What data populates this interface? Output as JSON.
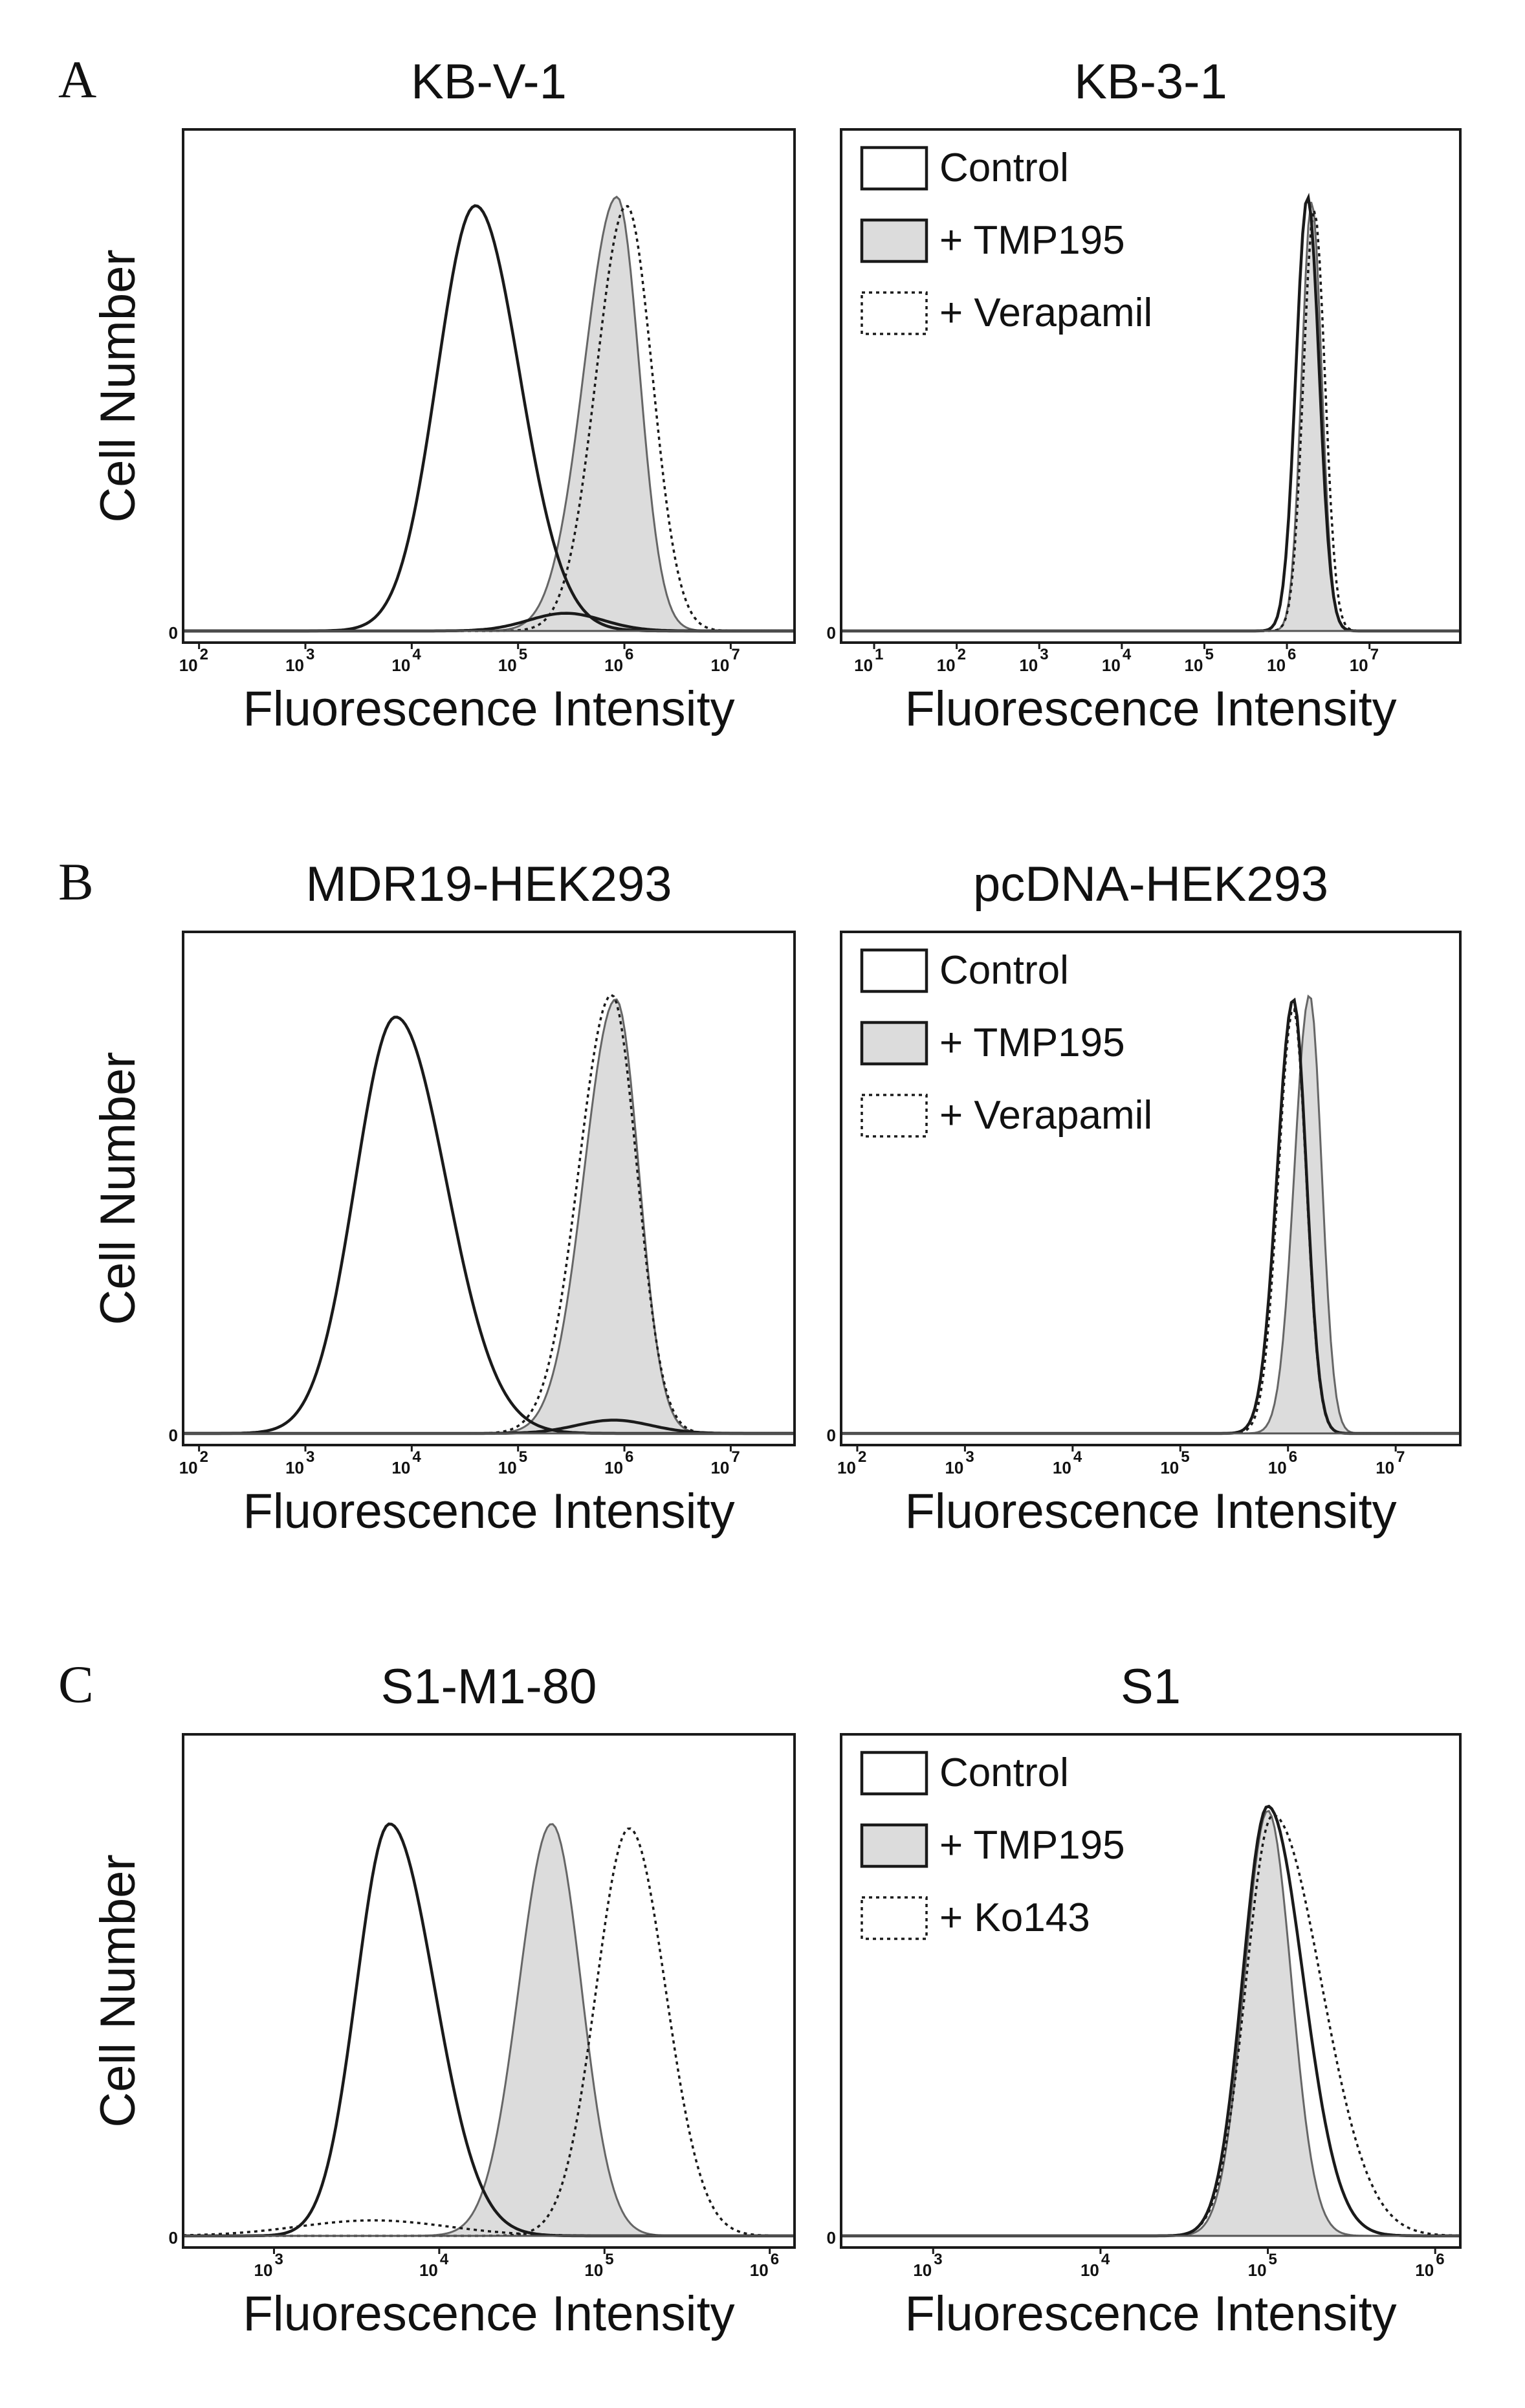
{
  "figure": {
    "colors": {
      "control": "#1a1a1a",
      "tmp195_fill": "#dcdcdc",
      "tmp195_line": "#666666",
      "dotted": "#1a1a1a",
      "axis": "#1a1a1a"
    }
  },
  "chart_data": [
    {
      "id": "A-left",
      "panel_letter": "A",
      "type": "area",
      "title": "KB-V-1",
      "xlabel": "Fluorescence Intensity",
      "ylabel": "Cell Number",
      "zero_label": "0",
      "xscale": "log",
      "tick_base": "10",
      "tick_exponents": [
        "2",
        "3",
        "4",
        "5",
        "6",
        "7"
      ],
      "x_ticks": [
        2,
        3,
        4,
        5,
        6,
        7
      ],
      "xlim": [
        1.85,
        7.6
      ],
      "ylim": [
        0,
        1.1
      ],
      "legend": null,
      "series": [
        {
          "name": "Control",
          "style": "solid",
          "peak_log10": 4.6,
          "spread": 0.36,
          "height": 0.96,
          "rise": 1.0,
          "fall": 1.15
        },
        {
          "name": "+ TMP195",
          "style": "filled",
          "peak_log10": 5.93,
          "spread": 0.28,
          "height": 0.98,
          "rise": 1.1,
          "fall": 0.75
        },
        {
          "name": "+ TMP195 (low shoulder)",
          "style": "solid",
          "peak_log10": 5.45,
          "spread": 0.35,
          "height": 0.04,
          "rise": 1.0,
          "fall": 1.0
        },
        {
          "name": "+ Verapamil",
          "style": "dotted",
          "peak_log10": 6.02,
          "spread": 0.27,
          "height": 0.96,
          "rise": 1.05,
          "fall": 0.9
        }
      ]
    },
    {
      "id": "A-right",
      "panel_letter": "",
      "type": "area",
      "title": "KB-3-1",
      "xlabel": "Fluorescence Intensity",
      "ylabel": "",
      "zero_label": "0",
      "xscale": "log",
      "tick_base": "10",
      "tick_exponents": [
        "1",
        "2",
        "3",
        "4",
        "5",
        "6",
        "7"
      ],
      "x_ticks": [
        1,
        2,
        3,
        4,
        5,
        6,
        7
      ],
      "xlim": [
        0.6,
        8.1
      ],
      "ylim": [
        0,
        1.1
      ],
      "legend": [
        "Control",
        "+ TMP195",
        "+ Verapamil"
      ],
      "series": [
        {
          "name": "Control",
          "style": "solid",
          "peak_log10": 6.25,
          "spread": 0.14,
          "height": 0.98,
          "rise": 1.0,
          "fall": 1.0
        },
        {
          "name": "+ TMP195",
          "style": "filled",
          "peak_log10": 6.3,
          "spread": 0.12,
          "height": 0.97,
          "rise": 1.0,
          "fall": 1.0
        },
        {
          "name": "+ Verapamil",
          "style": "dotted",
          "peak_log10": 6.33,
          "spread": 0.13,
          "height": 0.95,
          "rise": 1.0,
          "fall": 1.0
        }
      ]
    },
    {
      "id": "B-left",
      "panel_letter": "B",
      "type": "area",
      "title": "MDR19-HEK293",
      "xlabel": "Fluorescence Intensity",
      "ylabel": "Cell Number",
      "zero_label": "0",
      "xscale": "log",
      "tick_base": "10",
      "tick_exponents": [
        "2",
        "3",
        "4",
        "5",
        "6",
        "7"
      ],
      "x_ticks": [
        2,
        3,
        4,
        5,
        6,
        7
      ],
      "xlim": [
        1.85,
        7.6
      ],
      "ylim": [
        0,
        1.1
      ],
      "legend": null,
      "series": [
        {
          "name": "Control",
          "style": "solid",
          "peak_log10": 3.85,
          "spread": 0.38,
          "height": 0.94,
          "rise": 1.0,
          "fall": 1.25
        },
        {
          "name": "+ TMP195",
          "style": "filled",
          "peak_log10": 5.92,
          "spread": 0.27,
          "height": 0.98,
          "rise": 1.1,
          "fall": 0.8
        },
        {
          "name": "+ TMP195 (low shoulder)",
          "style": "solid",
          "peak_log10": 5.9,
          "spread": 0.35,
          "height": 0.03,
          "rise": 1.0,
          "fall": 1.0
        },
        {
          "name": "+ Verapamil",
          "style": "dotted",
          "peak_log10": 5.88,
          "spread": 0.28,
          "height": 0.99,
          "rise": 1.1,
          "fall": 0.85
        }
      ]
    },
    {
      "id": "B-right",
      "panel_letter": "",
      "type": "area",
      "title": "pcDNA-HEK293",
      "xlabel": "Fluorescence Intensity",
      "ylabel": "",
      "zero_label": "0",
      "xscale": "log",
      "tick_base": "10",
      "tick_exponents": [
        "2",
        "3",
        "4",
        "5",
        "6",
        "7"
      ],
      "x_ticks": [
        2,
        3,
        4,
        5,
        6,
        7
      ],
      "xlim": [
        1.85,
        7.6
      ],
      "ylim": [
        0,
        1.1
      ],
      "legend": [
        "Control",
        "+ TMP195",
        "+ Verapamil"
      ],
      "series": [
        {
          "name": "Control",
          "style": "solid",
          "peak_log10": 6.05,
          "spread": 0.15,
          "height": 0.98,
          "rise": 1.0,
          "fall": 0.8
        },
        {
          "name": "+ TMP195",
          "style": "filled",
          "peak_log10": 6.2,
          "spread": 0.14,
          "height": 0.99,
          "rise": 1.0,
          "fall": 0.8
        },
        {
          "name": "+ Verapamil",
          "style": "dotted",
          "peak_log10": 6.05,
          "spread": 0.14,
          "height": 0.96,
          "rise": 1.0,
          "fall": 0.85
        }
      ]
    },
    {
      "id": "C-left",
      "panel_letter": "C",
      "type": "area",
      "title": "S1-M1-80",
      "xlabel": "Fluorescence Intensity",
      "ylabel": "Cell Number",
      "zero_label": "0",
      "xscale": "log",
      "tick_base": "10",
      "tick_exponents": [
        "3",
        "4",
        "5",
        "6"
      ],
      "x_ticks": [
        3,
        4,
        5,
        6
      ],
      "xlim": [
        2.45,
        6.15
      ],
      "ylim": [
        0,
        1.1
      ],
      "legend": null,
      "series": [
        {
          "name": "Control",
          "style": "solid",
          "peak_log10": 3.7,
          "spread": 0.2,
          "height": 0.93,
          "rise": 1.0,
          "fall": 1.35
        },
        {
          "name": "+ TMP195",
          "style": "filled",
          "peak_log10": 4.68,
          "spread": 0.18,
          "height": 0.93,
          "rise": 1.1,
          "fall": 1.0
        },
        {
          "name": "+ Ko143 (low shoulder)",
          "style": "dotted",
          "peak_log10": 3.6,
          "spread": 0.45,
          "height": 0.035,
          "rise": 1.0,
          "fall": 1.0
        },
        {
          "name": "+ Ko143",
          "style": "dotted",
          "peak_log10": 5.15,
          "spread": 0.2,
          "height": 0.92,
          "rise": 1.0,
          "fall": 1.1
        }
      ]
    },
    {
      "id": "C-right",
      "panel_letter": "",
      "type": "area",
      "title": "S1",
      "xlabel": "Fluorescence Intensity",
      "ylabel": "",
      "zero_label": "0",
      "xscale": "log",
      "tick_base": "10",
      "tick_exponents": [
        "3",
        "4",
        "5",
        "6"
      ],
      "x_ticks": [
        3,
        4,
        5,
        6
      ],
      "xlim": [
        2.45,
        6.15
      ],
      "ylim": [
        0,
        1.1
      ],
      "legend": [
        "Control",
        "+ TMP195",
        "+ Ko143"
      ],
      "series": [
        {
          "name": "Control",
          "style": "solid",
          "peak_log10": 5.0,
          "spread": 0.15,
          "height": 0.97,
          "rise": 1.0,
          "fall": 1.4
        },
        {
          "name": "+ TMP195",
          "style": "filled",
          "peak_log10": 5.0,
          "spread": 0.14,
          "height": 0.96,
          "rise": 1.0,
          "fall": 1.0
        },
        {
          "name": "+ Ko143",
          "style": "dotted",
          "peak_log10": 5.03,
          "spread": 0.16,
          "height": 0.95,
          "rise": 1.0,
          "fall": 1.8
        }
      ]
    }
  ]
}
